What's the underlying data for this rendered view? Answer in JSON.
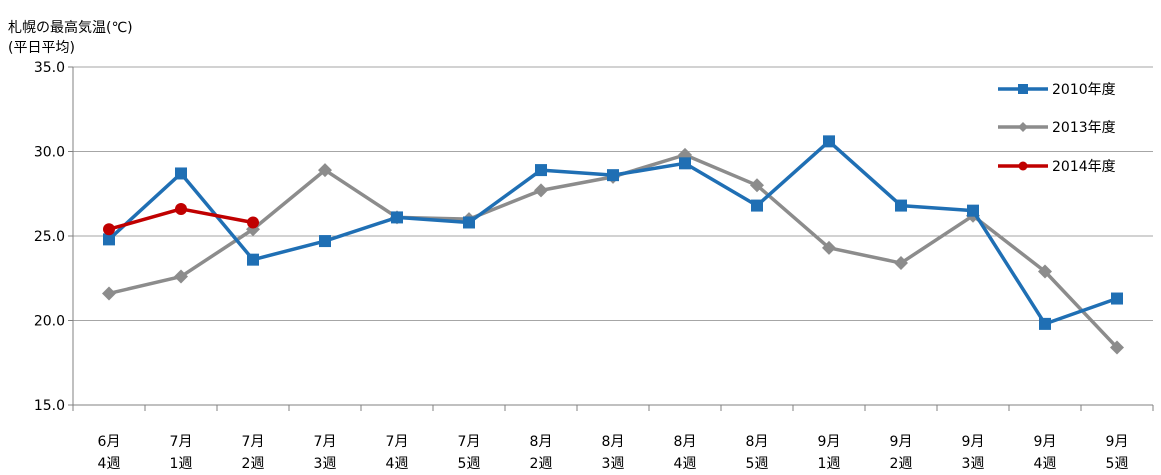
{
  "chart_data": {
    "type": "line",
    "title": "札幌の最高気温(℃)",
    "subtitle": "(平日平均)",
    "categories": [
      [
        "6月",
        "4週"
      ],
      [
        "7月",
        "1週"
      ],
      [
        "7月",
        "2週"
      ],
      [
        "7月",
        "3週"
      ],
      [
        "7月",
        "4週"
      ],
      [
        "7月",
        "5週"
      ],
      [
        "8月",
        "2週"
      ],
      [
        "8月",
        "3週"
      ],
      [
        "8月",
        "4週"
      ],
      [
        "8月",
        "5週"
      ],
      [
        "9月",
        "1週"
      ],
      [
        "9月",
        "2週"
      ],
      [
        "9月",
        "3週"
      ],
      [
        "9月",
        "4週"
      ],
      [
        "9月",
        "5週"
      ]
    ],
    "ylim": [
      15,
      35
    ],
    "yticks": [
      "15.0",
      "20.0",
      "25.0",
      "30.0",
      "35.0"
    ],
    "ytick_values": [
      15,
      20,
      25,
      30,
      35
    ],
    "grid": true,
    "legend_position": "top-right",
    "series": [
      {
        "name": "2010年度",
        "marker": "square",
        "color": "#1F6FB4",
        "values": [
          24.8,
          28.7,
          23.6,
          24.7,
          26.1,
          25.8,
          28.9,
          28.6,
          29.3,
          26.8,
          30.6,
          26.8,
          26.5,
          19.8,
          21.3
        ]
      },
      {
        "name": "2013年度",
        "marker": "diamond",
        "color": "#8C8C8C",
        "values": [
          21.6,
          22.6,
          25.4,
          28.9,
          26.1,
          26.0,
          27.7,
          28.5,
          29.8,
          28.0,
          24.3,
          23.4,
          26.2,
          22.9,
          18.4
        ]
      },
      {
        "name": "2014年度",
        "marker": "circle",
        "color": "#C00000",
        "values": [
          25.4,
          26.6,
          25.8,
          null,
          null,
          null,
          null,
          null,
          null,
          null,
          null,
          null,
          null,
          null,
          null
        ]
      }
    ]
  }
}
